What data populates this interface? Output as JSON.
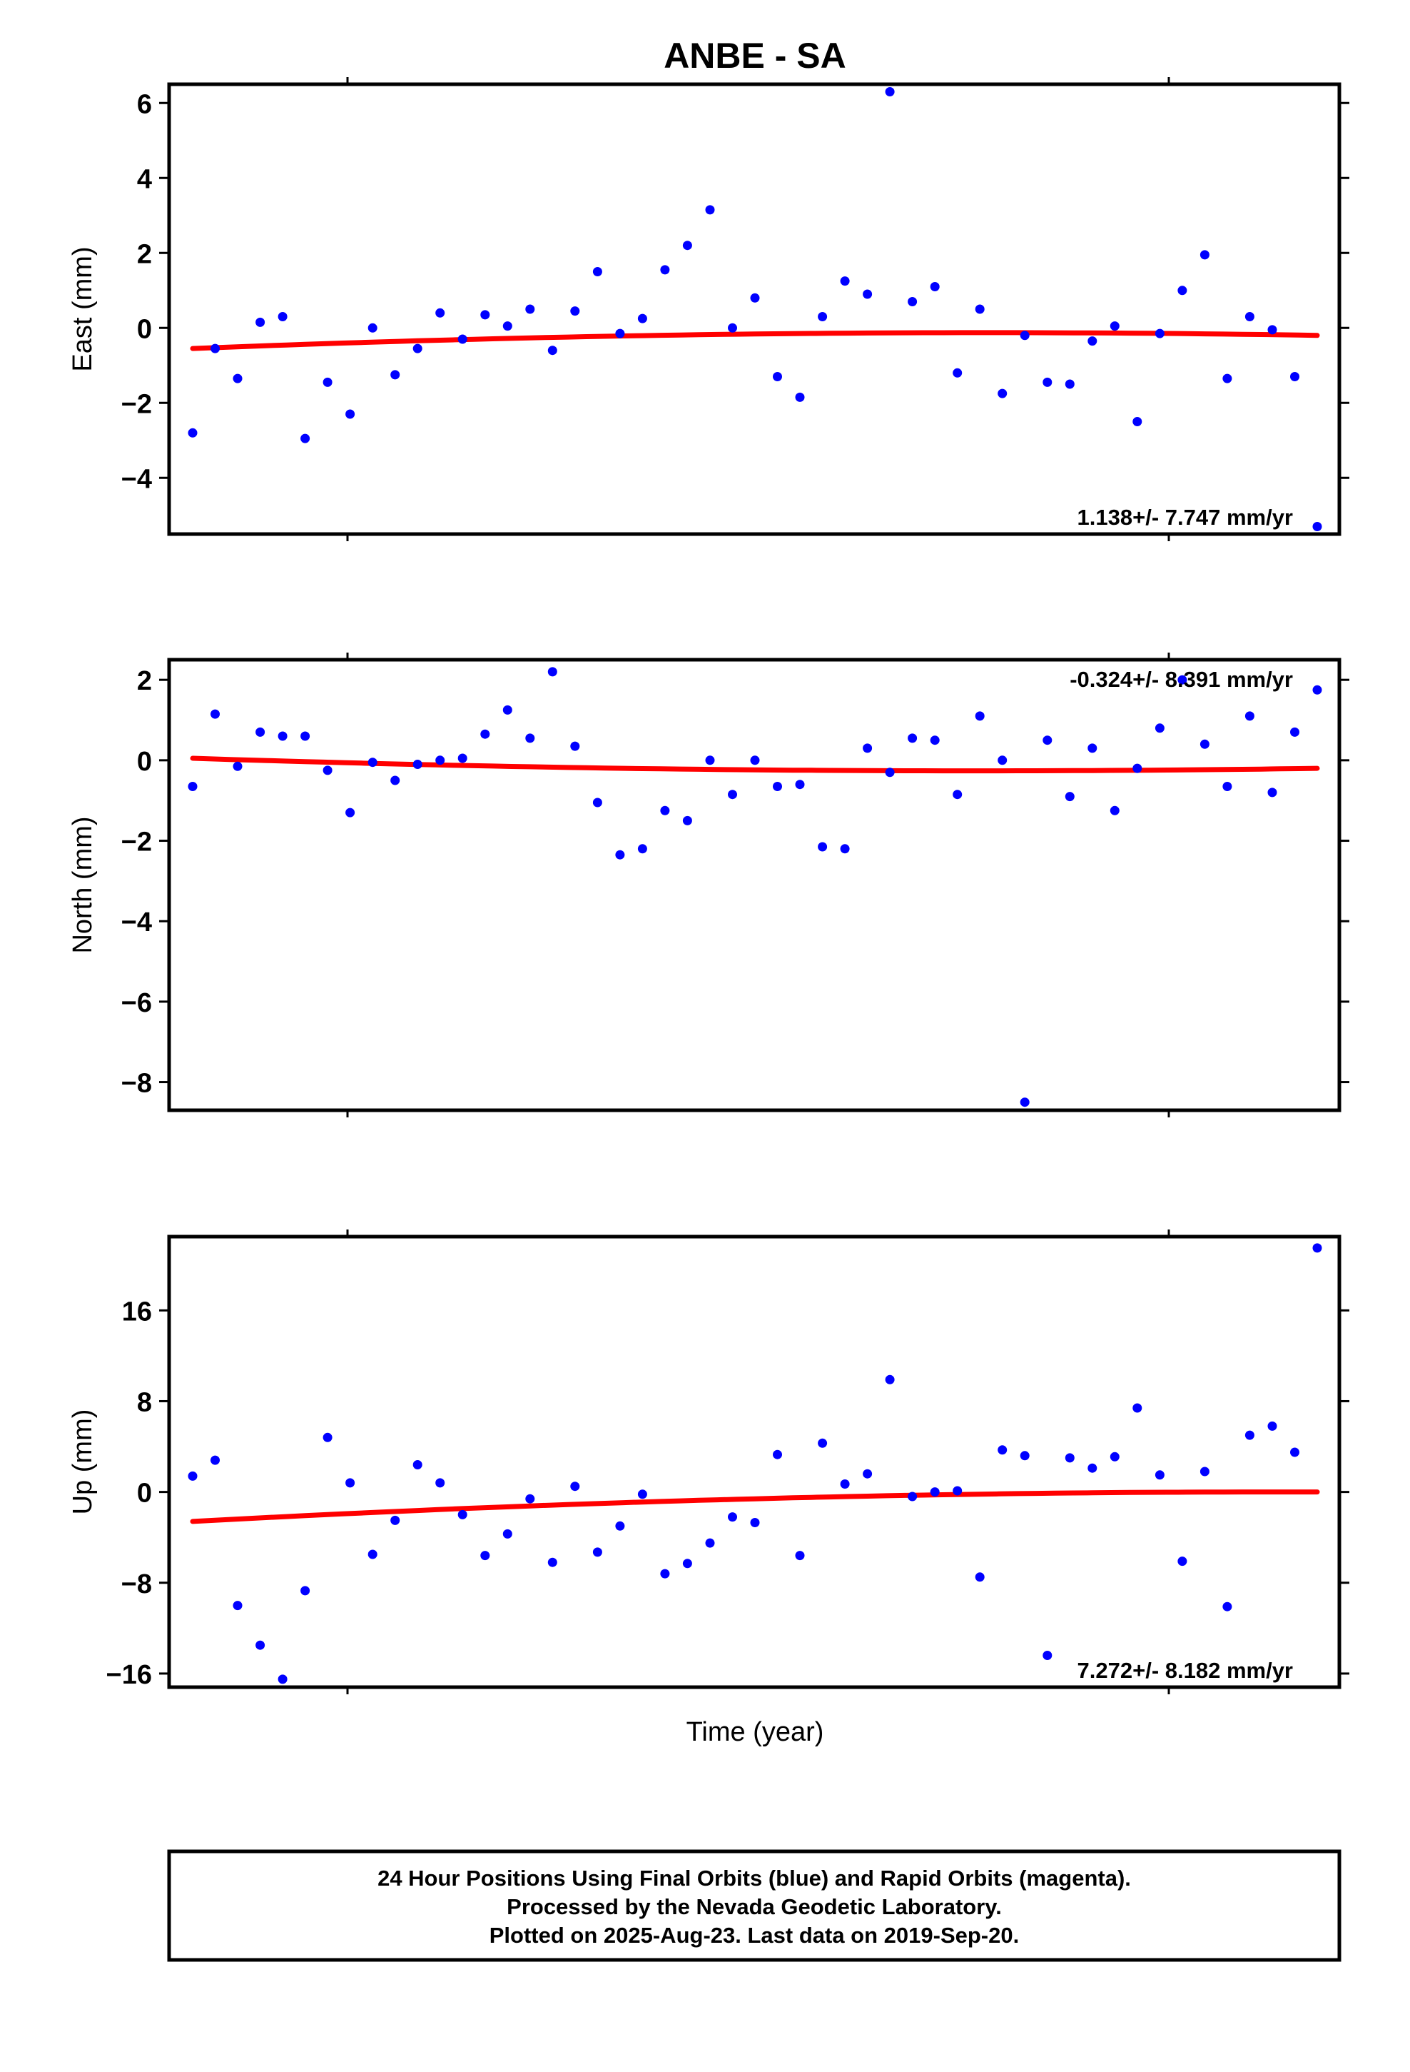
{
  "title": "ANBE - SA",
  "xlabel": "Time (year)",
  "footer": [
    "24 Hour Positions Using Final Orbits (blue) and Rapid Orbits (magenta).",
    "Processed by the Nevada Geodetic Laboratory.",
    "Plotted on 2025-Aug-23. Last data on 2019-Sep-20."
  ],
  "colors": {
    "points": "#0000ff",
    "fit": "#ff0000"
  },
  "chart_data": [
    {
      "type": "scatter",
      "ylabel": "East (mm)",
      "rate_label": "1.138+/- 7.747 mm/yr",
      "ylim": [
        -5.5,
        6.5
      ],
      "yticks": [
        6,
        4,
        2,
        0,
        -2,
        -4
      ],
      "ytick_labels": [
        "6",
        "4",
        "2",
        "0",
        "−2",
        "−4"
      ],
      "x": [
        1,
        2,
        3,
        4,
        5,
        6,
        7,
        8,
        9,
        10,
        11,
        12,
        13,
        14,
        15,
        16,
        17,
        18,
        19,
        20,
        21,
        22,
        23,
        24,
        25,
        26,
        27,
        28,
        29,
        30,
        31,
        32,
        33,
        34,
        35,
        36,
        37,
        38,
        39,
        40,
        41,
        42,
        43,
        44,
        45,
        46,
        47,
        48,
        49,
        50,
        51
      ],
      "values": [
        -2.8,
        -0.55,
        -1.35,
        0.15,
        0.3,
        -2.95,
        -1.45,
        -2.3,
        0.0,
        -1.25,
        -0.55,
        0.4,
        -0.3,
        0.35,
        0.05,
        0.5,
        -0.6,
        0.45,
        1.5,
        -0.15,
        0.25,
        1.55,
        2.2,
        3.15,
        0.0,
        0.8,
        -1.3,
        -1.85,
        0.3,
        1.25,
        0.9,
        6.3,
        0.7,
        1.1,
        -1.2,
        0.5,
        -1.75,
        -0.2,
        -1.45,
        -1.5,
        -0.35,
        0.05,
        -2.5,
        -0.15,
        1.0,
        1.95,
        -1.35,
        0.3,
        -0.05,
        -1.3,
        -5.3
      ],
      "fit": [
        -0.55,
        0.05,
        -0.2
      ]
    },
    {
      "type": "scatter",
      "ylabel": "North (mm)",
      "rate_label": "-0.324+/- 8.391 mm/yr",
      "ylim": [
        -8.7,
        2.5
      ],
      "yticks": [
        2,
        0,
        -2,
        -4,
        -6,
        -8
      ],
      "ytick_labels": [
        "2",
        "0",
        "−2",
        "−4",
        "−6",
        "−8"
      ],
      "x": [
        1,
        2,
        3,
        4,
        5,
        6,
        7,
        8,
        9,
        10,
        11,
        12,
        13,
        14,
        15,
        16,
        17,
        18,
        19,
        20,
        21,
        22,
        23,
        24,
        25,
        26,
        27,
        28,
        29,
        30,
        31,
        32,
        33,
        34,
        35,
        36,
        37,
        38,
        39,
        40,
        41,
        42,
        43,
        44,
        45,
        46,
        47,
        48,
        49,
        50,
        51
      ],
      "values": [
        -0.65,
        1.15,
        -0.15,
        0.7,
        0.6,
        0.6,
        -0.25,
        -1.3,
        -0.05,
        -0.5,
        -0.1,
        0.0,
        0.05,
        0.65,
        1.25,
        0.55,
        2.2,
        0.35,
        -1.05,
        -2.35,
        -2.2,
        -1.25,
        -1.5,
        0.0,
        -0.85,
        0.0,
        -0.65,
        -0.6,
        -2.15,
        -2.2,
        0.3,
        -0.3,
        0.55,
        0.5,
        -0.85,
        1.1,
        0.0,
        -8.5,
        0.5,
        -0.9,
        0.3,
        -1.25,
        -0.2,
        0.8,
        2.0,
        0.4,
        -0.65,
        1.1,
        -0.8,
        0.7,
        1.75
      ],
      "fit": [
        0.05,
        -0.4,
        -0.2
      ]
    },
    {
      "type": "scatter",
      "ylabel": "Up (mm)",
      "rate_label": "7.272+/- 8.182 mm/yr",
      "ylim": [
        -17.2,
        22.5
      ],
      "yticks": [
        16,
        8,
        0,
        -8,
        -16
      ],
      "ytick_labels": [
        "16",
        "8",
        "0",
        "−8",
        "−16"
      ],
      "x": [
        1,
        2,
        3,
        4,
        5,
        6,
        7,
        8,
        9,
        10,
        11,
        12,
        13,
        14,
        15,
        16,
        17,
        18,
        19,
        20,
        21,
        22,
        23,
        24,
        25,
        26,
        27,
        28,
        29,
        30,
        31,
        32,
        33,
        34,
        35,
        36,
        37,
        38,
        39,
        40,
        41,
        42,
        43,
        44,
        45,
        46,
        47,
        48,
        49,
        50,
        51
      ],
      "values": [
        1.4,
        2.8,
        -10.0,
        -13.5,
        -16.5,
        -8.7,
        4.8,
        0.8,
        -5.5,
        -2.5,
        2.4,
        0.8,
        -2.0,
        -5.6,
        -3.7,
        -0.6,
        -6.2,
        0.5,
        -5.3,
        -3.0,
        -0.2,
        -7.2,
        -6.3,
        -4.5,
        -2.2,
        -2.7,
        3.3,
        -5.6,
        4.3,
        0.7,
        1.6,
        9.9,
        -0.4,
        0.0,
        0.1,
        -7.5,
        3.7,
        3.2,
        -14.4,
        3.0,
        2.1,
        3.1,
        7.4,
        1.5,
        -6.1,
        1.8,
        -10.1,
        5.0,
        5.8,
        3.5,
        21.5
      ],
      "fit": [
        -2.6,
        0.1,
        0.0
      ]
    }
  ]
}
